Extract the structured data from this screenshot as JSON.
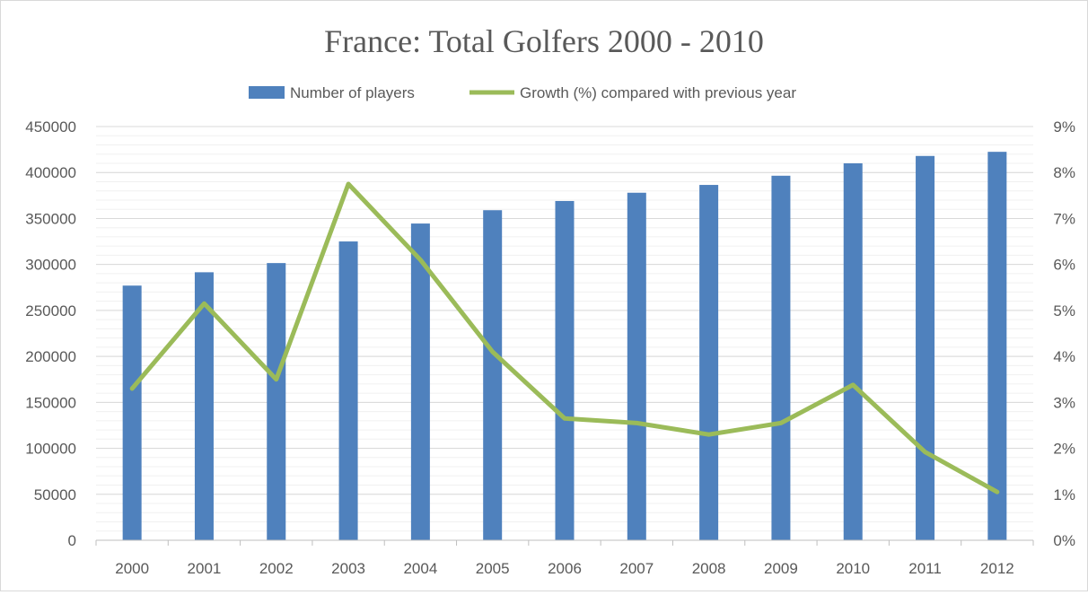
{
  "chart_data": {
    "type": "bar+line",
    "title": "France: Total Golfers 2000 - 2010",
    "categories": [
      "2000",
      "2001",
      "2002",
      "2003",
      "2004",
      "2005",
      "2006",
      "2007",
      "2008",
      "2009",
      "2010",
      "2011",
      "2012"
    ],
    "series": [
      {
        "name": "Number of players",
        "type": "bar",
        "axis": "left",
        "color": "#4f81bd",
        "values": [
          277000,
          291500,
          301500,
          325000,
          344500,
          359000,
          369000,
          378000,
          386500,
          396500,
          410000,
          418000,
          422500
        ]
      },
      {
        "name": "Growth (%) compared with previous year",
        "type": "line",
        "axis": "right",
        "color": "#9bbb59",
        "values": [
          3.3,
          5.15,
          3.5,
          7.75,
          6.1,
          4.1,
          2.65,
          2.55,
          2.3,
          2.55,
          3.38,
          1.92,
          1.05
        ]
      }
    ],
    "y_left": {
      "ylim": [
        0,
        450000
      ],
      "ticks": [
        0,
        50000,
        100000,
        150000,
        200000,
        250000,
        300000,
        350000,
        400000,
        450000
      ],
      "tick_labels": [
        "0",
        "50000",
        "100000",
        "150000",
        "200000",
        "250000",
        "300000",
        "350000",
        "400000",
        "450000"
      ]
    },
    "y_right": {
      "ylim": [
        0,
        9
      ],
      "ticks": [
        0,
        1,
        2,
        3,
        4,
        5,
        6,
        7,
        8,
        9
      ],
      "tick_labels": [
        "0%",
        "1%",
        "2%",
        "3%",
        "4%",
        "5%",
        "6%",
        "7%",
        "8%",
        "9%"
      ]
    },
    "grid": true,
    "legend_position": "top"
  }
}
